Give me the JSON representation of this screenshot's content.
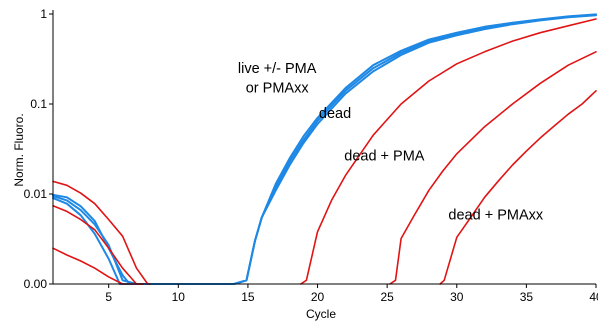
{
  "chart_data": {
    "type": "line",
    "title": "",
    "xlabel": "Cycle",
    "ylabel": "Norm. Fluoro.",
    "xlim": [
      1,
      40
    ],
    "ylim": [
      0.001,
      1
    ],
    "y_scale": "log",
    "grid": false,
    "legend": "none",
    "x_ticks": [
      {
        "value": 5,
        "label": "5"
      },
      {
        "value": 10,
        "label": "10"
      },
      {
        "value": 15,
        "label": "15"
      },
      {
        "value": 20,
        "label": "20"
      },
      {
        "value": 25,
        "label": "25"
      },
      {
        "value": 30,
        "label": "30"
      },
      {
        "value": 35,
        "label": "35"
      },
      {
        "value": 40,
        "label": "40"
      }
    ],
    "y_ticks": [
      {
        "value": 1,
        "label": "1"
      },
      {
        "value": 0.1,
        "label": "0.1"
      },
      {
        "value": 0.01,
        "label": "0.01"
      },
      {
        "value": 0.001,
        "label": "0.00"
      }
    ],
    "colors": {
      "live": "#1e88e5",
      "dead": "#e01414"
    },
    "series": [
      {
        "color": "#1e88e5",
        "x": [
          1,
          2,
          3,
          4,
          5,
          6,
          7,
          14,
          14.9,
          15.5,
          16,
          17,
          18,
          19,
          20,
          22,
          24,
          26,
          28,
          30,
          32,
          34,
          36,
          38,
          40
        ],
        "y": [
          0.0095,
          0.0085,
          0.0066,
          0.0046,
          0.0027,
          0.0011,
          0.001,
          0.001,
          0.0011,
          0.003,
          0.0055,
          0.012,
          0.023,
          0.04,
          0.065,
          0.14,
          0.25,
          0.37,
          0.5,
          0.6,
          0.7,
          0.78,
          0.86,
          0.93,
          0.98
        ]
      },
      {
        "color": "#1e88e5",
        "x": [
          1,
          2,
          3,
          4,
          5,
          5.8,
          14,
          14.9,
          15.5,
          16,
          17,
          18,
          19,
          20,
          22,
          24,
          26,
          28,
          30,
          32,
          34,
          36,
          38,
          40
        ],
        "y": [
          0.009,
          0.0078,
          0.0058,
          0.0036,
          0.0019,
          0.001,
          0.001,
          0.0011,
          0.003,
          0.0055,
          0.013,
          0.025,
          0.044,
          0.07,
          0.15,
          0.27,
          0.39,
          0.52,
          0.62,
          0.72,
          0.8,
          0.87,
          0.94,
          0.99
        ]
      },
      {
        "color": "#1e88e5",
        "x": [
          1,
          2,
          3,
          4,
          5,
          6,
          6.5,
          14,
          14.9,
          15.5,
          16,
          17,
          18,
          19,
          20,
          22,
          24,
          26,
          28,
          30,
          32,
          34,
          36,
          38,
          40
        ],
        "y": [
          0.0098,
          0.0092,
          0.0073,
          0.005,
          0.0025,
          0.00125,
          0.001,
          0.001,
          0.0011,
          0.003,
          0.0055,
          0.011,
          0.021,
          0.037,
          0.06,
          0.13,
          0.23,
          0.35,
          0.48,
          0.58,
          0.68,
          0.77,
          0.85,
          0.92,
          0.97
        ]
      },
      {
        "color": "#e01414",
        "x": [
          1,
          2,
          3,
          4,
          5,
          6,
          7,
          7.8,
          8
        ],
        "y": [
          0.0138,
          0.0125,
          0.0102,
          0.0078,
          0.0052,
          0.0034,
          0.0015,
          0.001,
          0.001
        ]
      },
      {
        "color": "#e01414",
        "x": [
          1,
          2,
          3,
          4,
          5,
          6,
          7,
          7.5
        ],
        "y": [
          0.0074,
          0.0064,
          0.0052,
          0.004,
          0.0025,
          0.0015,
          0.001,
          0.001
        ]
      },
      {
        "color": "#e01414",
        "x": [
          1,
          2,
          3,
          4,
          5,
          6,
          7,
          7.5
        ],
        "y": [
          0.0025,
          0.0021,
          0.0018,
          0.0015,
          0.0012,
          0.001,
          0.001,
          0.001
        ]
      },
      {
        "color": "#e01414",
        "x": [
          18.8,
          19.2,
          20,
          21,
          22,
          24,
          26,
          28,
          30,
          32,
          34,
          36,
          38,
          40
        ],
        "y": [
          0.001,
          0.0011,
          0.0038,
          0.0085,
          0.016,
          0.045,
          0.1,
          0.18,
          0.28,
          0.38,
          0.5,
          0.62,
          0.74,
          0.88
        ]
      },
      {
        "color": "#e01414",
        "x": [
          25.2,
          25.6,
          26,
          27,
          28,
          29,
          30,
          32,
          34,
          36,
          38,
          40
        ],
        "y": [
          0.001,
          0.0011,
          0.0032,
          0.006,
          0.011,
          0.018,
          0.028,
          0.056,
          0.1,
          0.17,
          0.27,
          0.38
        ]
      },
      {
        "color": "#e01414",
        "x": [
          28.8,
          29.1,
          30,
          31,
          32,
          33,
          34,
          35,
          36,
          37,
          38,
          39,
          40
        ],
        "y": [
          0.001,
          0.0011,
          0.0033,
          0.0055,
          0.0092,
          0.014,
          0.021,
          0.03,
          0.042,
          0.057,
          0.077,
          0.1,
          0.14
        ]
      }
    ],
    "annotations": [
      {
        "text": "live +/- PMA",
        "x": 17.1,
        "y": 0.22,
        "anchor": "middle"
      },
      {
        "text": "or PMAxx",
        "x": 17.1,
        "y": 0.135,
        "anchor": "middle"
      },
      {
        "text": "dead",
        "x": 20.1,
        "y": 0.07,
        "anchor": "start"
      },
      {
        "text": "dead + PMA",
        "x": 24.8,
        "y": 0.0235,
        "anchor": "middle"
      },
      {
        "text": "dead + PMAxx",
        "x": 29.4,
        "y": 0.0052,
        "anchor": "start"
      }
    ]
  }
}
